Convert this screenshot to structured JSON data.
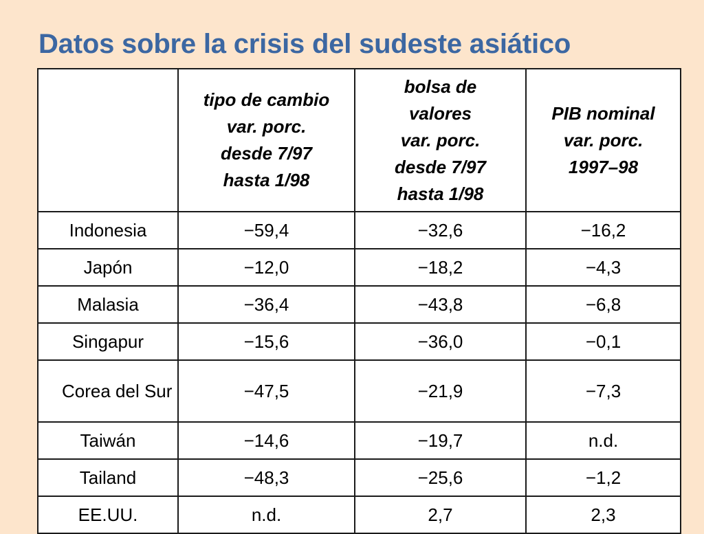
{
  "title": "Datos sobre la crisis del sudeste asiático",
  "table": {
    "headers": [
      {
        "lines": []
      },
      {
        "lines": [
          "tipo de cambio",
          "var. porc.",
          "desde 7/97",
          "hasta 1/98"
        ]
      },
      {
        "lines": [
          "bolsa de",
          "valores",
          "var. porc.",
          "desde 7/97",
          "hasta 1/98"
        ]
      },
      {
        "lines": [
          "PIB nominal",
          "var. porc.",
          "1997–98"
        ]
      }
    ],
    "rows": [
      {
        "country": "Indonesia",
        "exchange": "−59,4",
        "stock": "−32,6",
        "gdp": "−16,2"
      },
      {
        "country": "Japón",
        "exchange": "−12,0",
        "stock": "−18,2",
        "gdp": "−4,3"
      },
      {
        "country": "Malasia",
        "exchange": "−36,4",
        "stock": "−43,8",
        "gdp": "−6,8"
      },
      {
        "country": "Singapur",
        "exchange": "−15,6",
        "stock": "−36,0",
        "gdp": "−0,1"
      },
      {
        "country": "Corea del Sur",
        "exchange": "−47,5",
        "stock": "−21,9",
        "gdp": "−7,3"
      },
      {
        "country": "Taiwán",
        "exchange": "−14,6",
        "stock": "−19,7",
        "gdp": "n.d."
      },
      {
        "country": "Tailand",
        "exchange": "−48,3",
        "stock": "−25,6",
        "gdp": "−1,2"
      },
      {
        "country": "EE.UU.",
        "exchange": "n.d.",
        "stock": "2,7",
        "gdp": "2,3"
      }
    ]
  }
}
